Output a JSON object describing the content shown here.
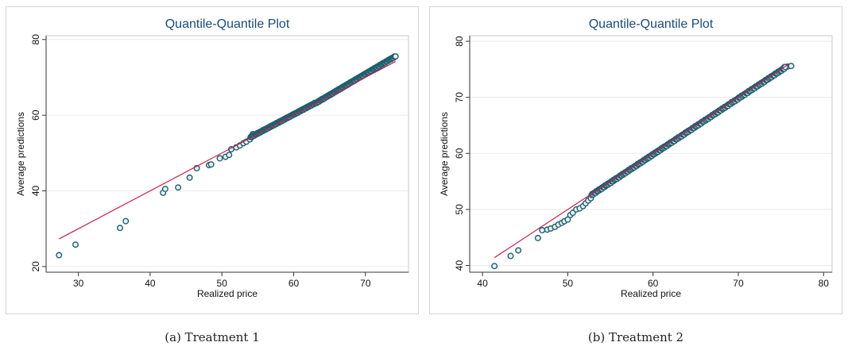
{
  "captions": [
    "(a)  Treatment 1",
    "(b)  Treatment 2"
  ],
  "colors": {
    "points": "#1f5f6f",
    "point_fill": "#e9f2f5",
    "reference_line": "#c81f4d",
    "title": "#1a4a78",
    "grid": "#eaeaea"
  },
  "chart_data": [
    {
      "type": "scatter",
      "title": "Quantile-Quantile Plot",
      "xlabel": "Realized price",
      "ylabel": "Average predictions",
      "xlim": [
        25.5,
        76
      ],
      "ylim": [
        18.5,
        81
      ],
      "xticks": [
        30,
        40,
        50,
        60,
        70
      ],
      "yticks": [
        20,
        40,
        60,
        80
      ],
      "reference_line": {
        "x": [
          27.3,
          74.2
        ],
        "y": [
          27.3,
          74.2
        ]
      },
      "grid": true,
      "dense_segments": [
        {
          "x": [
            54,
            63
          ],
          "y": [
            54.2,
            63.2
          ],
          "n": 90
        },
        {
          "x": [
            63,
            74.2
          ],
          "y": [
            63.1,
            75.6
          ],
          "n": 110
        }
      ],
      "points": [
        [
          27.3,
          23.0
        ],
        [
          29.6,
          25.8
        ],
        [
          35.8,
          30.2
        ],
        [
          36.6,
          32.0
        ],
        [
          41.8,
          39.5
        ],
        [
          42.1,
          40.5
        ],
        [
          43.9,
          40.9
        ],
        [
          45.5,
          43.5
        ],
        [
          46.5,
          46.0
        ],
        [
          48.2,
          46.8
        ],
        [
          48.5,
          47.0
        ],
        [
          49.7,
          48.6
        ],
        [
          50.5,
          49.0
        ],
        [
          51.0,
          49.5
        ],
        [
          51.3,
          51.0
        ],
        [
          52.0,
          51.5
        ],
        [
          52.5,
          52.0
        ],
        [
          53.0,
          52.6
        ],
        [
          53.4,
          53.0
        ],
        [
          53.9,
          53.6
        ],
        [
          54.3,
          55.0
        ]
      ]
    },
    {
      "type": "scatter",
      "title": "Quantile-Quantile Plot",
      "xlabel": "Realized price",
      "ylabel": "Average predictions",
      "xlim": [
        38.5,
        81
      ],
      "ylim": [
        38.8,
        81
      ],
      "xticks": [
        40,
        50,
        60,
        70,
        80
      ],
      "yticks": [
        40,
        50,
        60,
        70,
        80
      ],
      "reference_line": {
        "x": [
          41.4,
          76.0
        ],
        "y": [
          41.4,
          76.0
        ]
      },
      "grid": true,
      "dense_segments": [
        {
          "x": [
            52.8,
            62
          ],
          "y": [
            52.6,
            61.8
          ],
          "n": 100
        },
        {
          "x": [
            62,
            75.5
          ],
          "y": [
            61.8,
            75.3
          ],
          "n": 130
        }
      ],
      "points": [
        [
          41.4,
          39.9
        ],
        [
          43.3,
          41.7
        ],
        [
          44.2,
          42.7
        ],
        [
          46.5,
          44.9
        ],
        [
          47.0,
          46.3
        ],
        [
          47.6,
          46.4
        ],
        [
          48.0,
          46.6
        ],
        [
          48.5,
          46.9
        ],
        [
          48.9,
          47.3
        ],
        [
          49.3,
          47.6
        ],
        [
          49.6,
          47.9
        ],
        [
          50.0,
          48.2
        ],
        [
          50.3,
          49.0
        ],
        [
          50.6,
          49.4
        ],
        [
          51.0,
          50.0
        ],
        [
          51.4,
          50.2
        ],
        [
          51.8,
          50.6
        ],
        [
          52.1,
          51.1
        ],
        [
          52.4,
          51.6
        ],
        [
          52.7,
          52.0
        ],
        [
          75.4,
          75.4
        ],
        [
          75.8,
          75.5
        ],
        [
          76.2,
          75.6
        ]
      ]
    }
  ]
}
